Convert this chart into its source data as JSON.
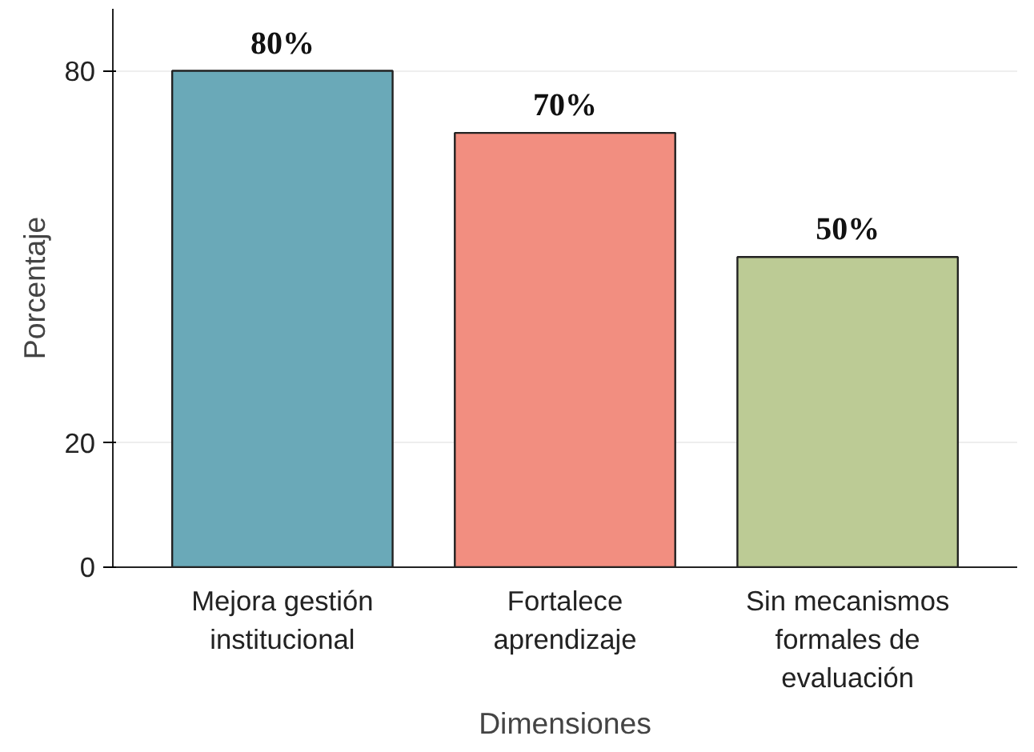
{
  "chart_data": {
    "type": "bar",
    "xlabel": "Dimensiones",
    "ylabel": "Porcentaje",
    "categories": [
      "Mejora gestión institucional",
      "Fortalece aprendizaje",
      "Sin mecanismos formales de evaluación"
    ],
    "values": [
      80,
      70,
      50
    ],
    "colors": [
      "#6aa9b8",
      "#f28e80",
      "#bccb95"
    ],
    "value_labels": [
      "80%",
      "70%",
      "50%"
    ],
    "ylim": [
      0,
      90
    ],
    "yticks": [
      0,
      20,
      80
    ],
    "grid": "y"
  }
}
